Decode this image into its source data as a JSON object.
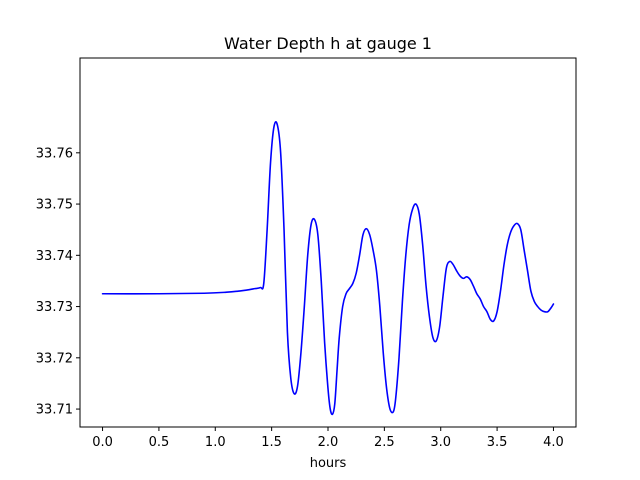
{
  "chart_data": {
    "type": "line",
    "title": "Water Depth h at gauge 1",
    "xlabel": "hours",
    "ylabel": "",
    "xlim": [
      -0.2,
      4.2
    ],
    "ylim": [
      33.7065,
      33.7785
    ],
    "xticks": [
      "0.0",
      "0.5",
      "1.0",
      "1.5",
      "2.0",
      "2.5",
      "3.0",
      "3.5",
      "4.0"
    ],
    "yticks": [
      "33.71",
      "33.72",
      "33.73",
      "33.74",
      "33.75",
      "33.76"
    ],
    "grid": false,
    "color": "#0000ff",
    "series": [
      {
        "x": [
          0.0,
          0.5,
          0.9,
          1.1,
          1.2,
          1.3,
          1.35,
          1.4,
          1.43,
          1.46,
          1.49,
          1.52,
          1.55,
          1.58,
          1.61,
          1.64,
          1.67,
          1.7,
          1.73,
          1.76,
          1.79,
          1.82,
          1.85,
          1.88,
          1.91,
          1.94,
          1.97,
          2.0,
          2.02,
          2.04,
          2.06,
          2.08,
          2.1,
          2.13,
          2.16,
          2.19,
          2.22,
          2.25,
          2.28,
          2.31,
          2.34,
          2.37,
          2.4,
          2.43,
          2.46,
          2.49,
          2.52,
          2.55,
          2.58,
          2.6,
          2.63,
          2.66,
          2.69,
          2.72,
          2.75,
          2.78,
          2.81,
          2.84,
          2.87,
          2.9,
          2.93,
          2.96,
          2.99,
          3.02,
          3.05,
          3.08,
          3.11,
          3.14,
          3.17,
          3.2,
          3.23,
          3.26,
          3.29,
          3.32,
          3.35,
          3.38,
          3.41,
          3.44,
          3.47,
          3.5,
          3.53,
          3.56,
          3.59,
          3.62,
          3.65,
          3.68,
          3.71,
          3.74,
          3.77,
          3.8,
          3.83,
          3.86,
          3.89,
          3.92,
          3.95,
          3.98,
          4.0
        ],
        "y": [
          33.7325,
          33.7325,
          33.7326,
          33.7328,
          33.733,
          33.7333,
          33.7335,
          33.7337,
          33.7345,
          33.745,
          33.758,
          33.765,
          33.7655,
          33.76,
          33.745,
          33.725,
          33.716,
          33.713,
          33.7145,
          33.721,
          33.73,
          33.74,
          33.746,
          33.747,
          33.744,
          33.735,
          33.723,
          33.714,
          33.71,
          33.709,
          33.711,
          33.7175,
          33.724,
          33.73,
          33.7325,
          33.7335,
          33.7345,
          33.7365,
          33.74,
          33.744,
          33.7452,
          33.744,
          33.741,
          33.737,
          33.73,
          33.721,
          33.714,
          33.71,
          33.7095,
          33.712,
          33.72,
          33.731,
          33.74,
          33.746,
          33.749,
          33.75,
          33.748,
          33.742,
          33.734,
          33.728,
          33.724,
          33.7233,
          33.726,
          33.732,
          33.7375,
          33.7388,
          33.7382,
          33.737,
          33.736,
          33.7355,
          33.7358,
          33.7353,
          33.734,
          33.7325,
          33.7315,
          33.73,
          33.729,
          33.7275,
          33.7272,
          33.729,
          33.733,
          33.738,
          33.742,
          33.7445,
          33.7458,
          33.7462,
          33.745,
          33.741,
          33.737,
          33.733,
          33.731,
          33.73,
          33.7293,
          33.729,
          33.729,
          33.7298,
          33.7305
        ]
      }
    ]
  }
}
